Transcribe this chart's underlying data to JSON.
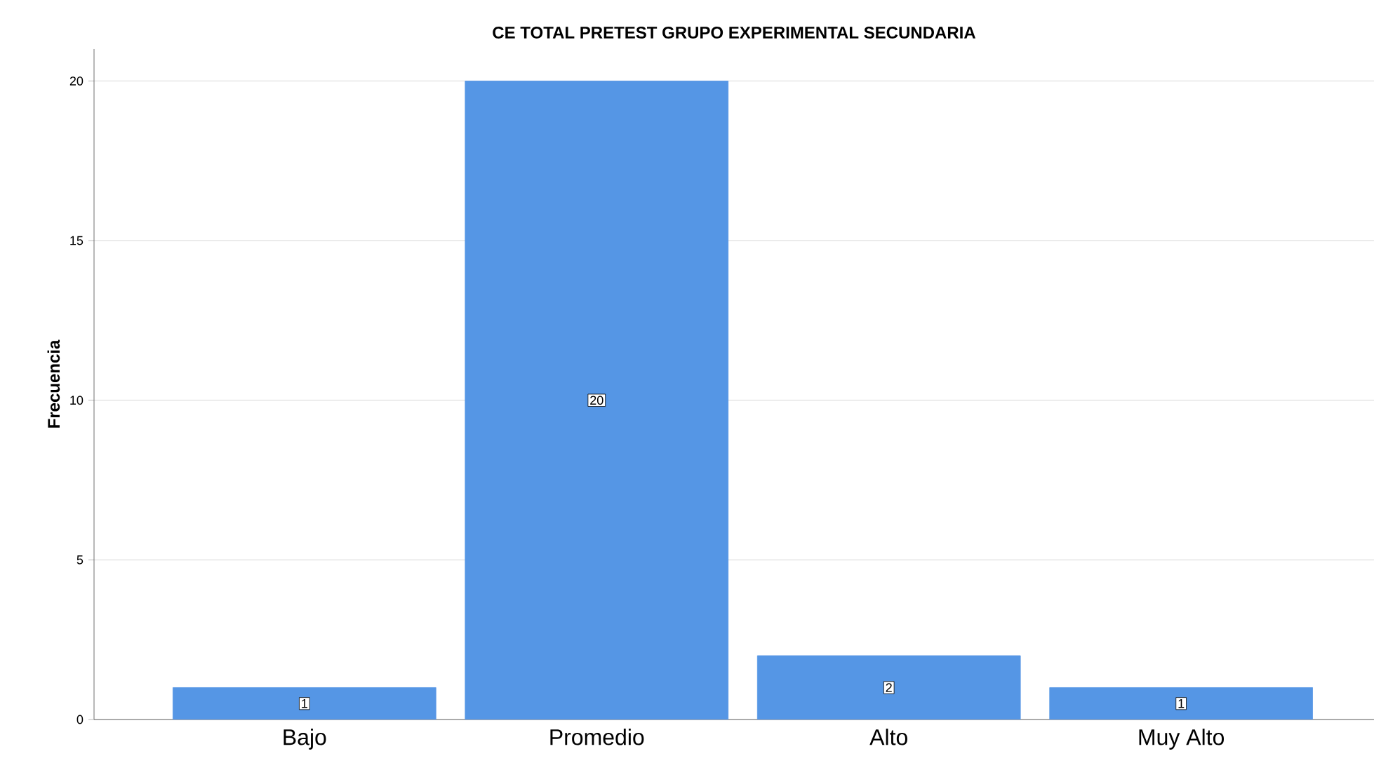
{
  "chart_data": {
    "type": "bar",
    "title": "CE TOTAL PRETEST GRUPO EXPERIMENTAL SECUNDARIA",
    "ylabel": "Frecuencia",
    "categories": [
      "Bajo",
      "Promedio",
      "Alto",
      "Muy Alto"
    ],
    "values": [
      1,
      20,
      2,
      1
    ],
    "color": "#5596e5",
    "ylim": [
      0,
      21
    ],
    "yticks": [
      0,
      5,
      10,
      15,
      20
    ],
    "grid": "y",
    "data_labels": true
  }
}
